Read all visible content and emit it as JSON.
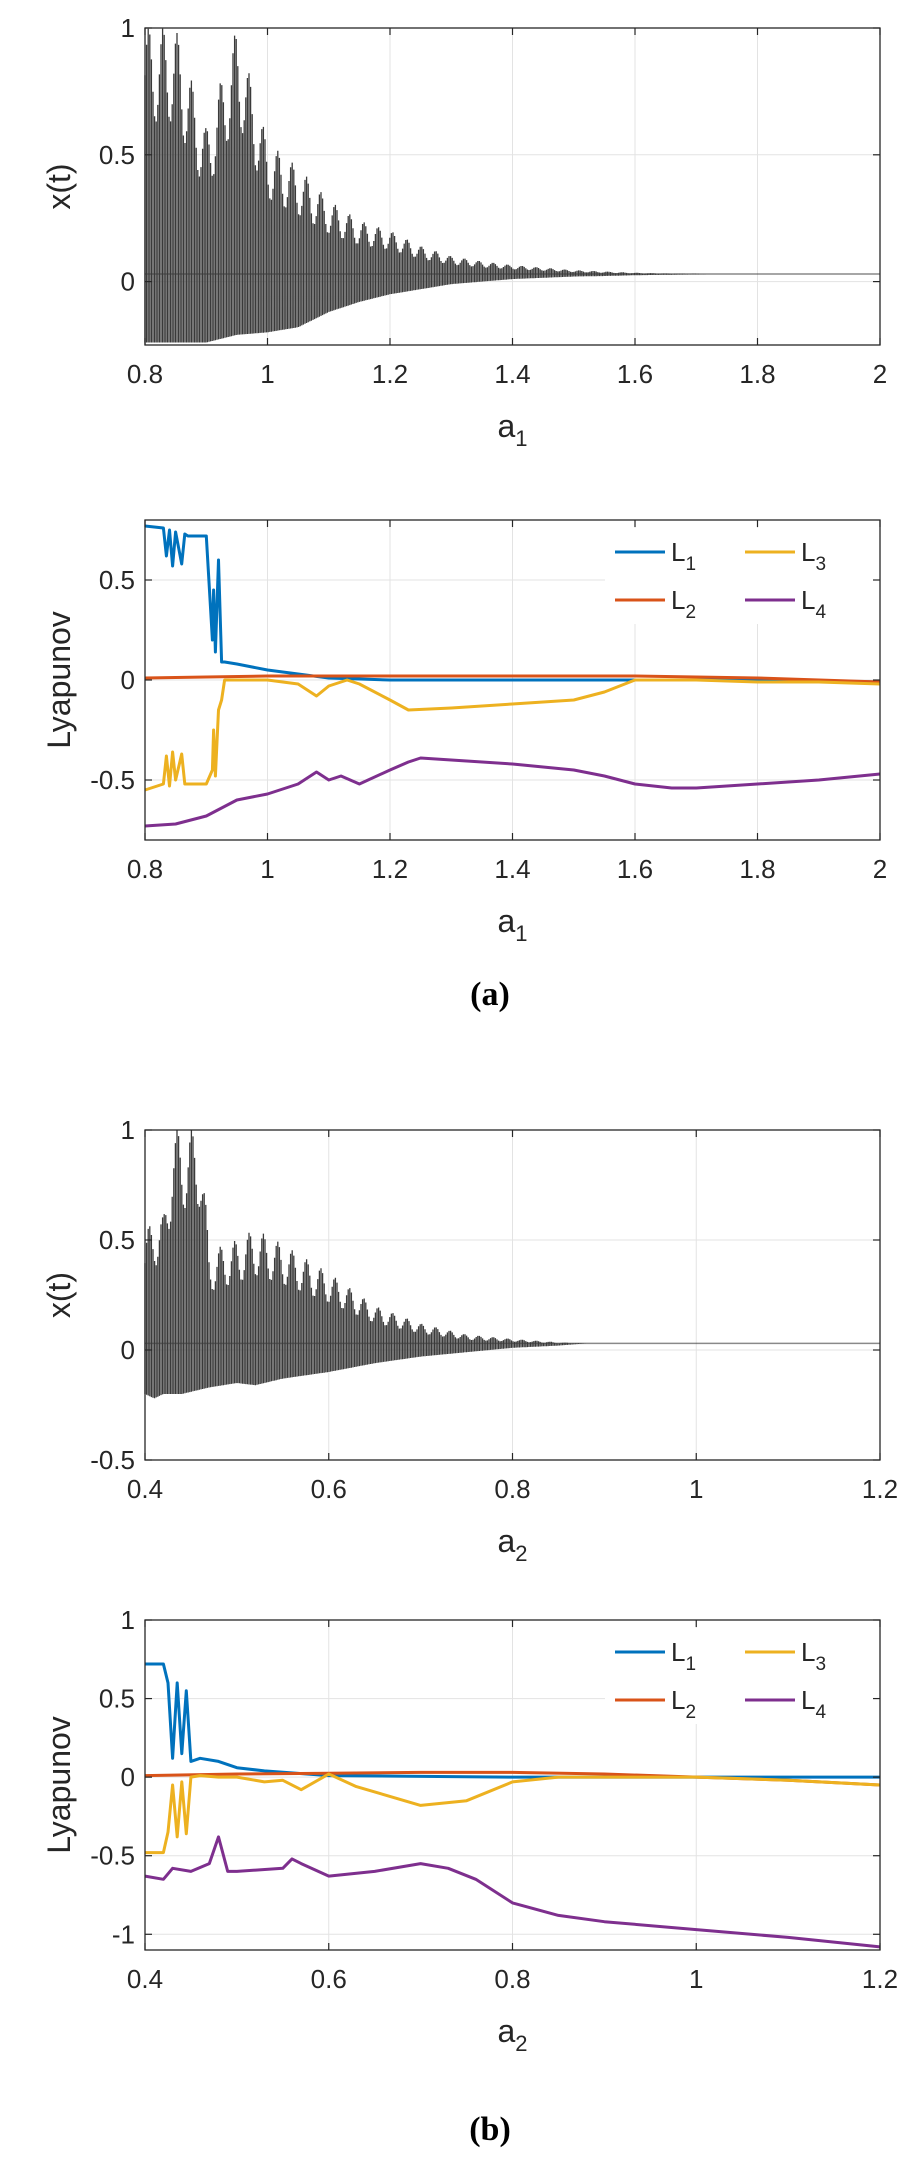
{
  "chart_data": [
    {
      "type": "line",
      "panel": "a",
      "xlabel": "a",
      "xlabel_sub": "1",
      "ylabel": "x(t)",
      "xlim": [
        0.8,
        2
      ],
      "ylim": [
        -0.25,
        1
      ],
      "xticks": [
        0.8,
        1,
        1.2,
        1.4,
        1.6,
        1.8,
        2
      ],
      "xtick_labels": [
        "0.8",
        "1",
        "1.2",
        "1.4",
        "1.6",
        "1.8",
        "2"
      ],
      "yticks": [
        0,
        0.5,
        1
      ],
      "ytick_labels": [
        "0",
        "0.5",
        "1"
      ],
      "grid": true,
      "series": [
        {
          "color": "#3a3a3a",
          "x": [
            0.8,
            0.85,
            0.9,
            0.95,
            1.0,
            1.05,
            1.1,
            1.15,
            1.2,
            1.25,
            1.3,
            1.35,
            1.4,
            1.45,
            1.5,
            1.55,
            1.6,
            1.65,
            1.72,
            1.8,
            1.9,
            2.0
          ],
          "upper": [
            1.0,
            1.0,
            0.6,
            1.0,
            0.55,
            0.45,
            0.32,
            0.24,
            0.2,
            0.14,
            0.1,
            0.08,
            0.065,
            0.055,
            0.045,
            0.04,
            0.035,
            0.032,
            0.03,
            0.03,
            0.03,
            0.03
          ],
          "lower": [
            -0.24,
            -0.24,
            -0.24,
            -0.21,
            -0.2,
            -0.18,
            -0.12,
            -0.08,
            -0.05,
            -0.03,
            -0.01,
            0.0,
            0.01,
            0.015,
            0.02,
            0.022,
            0.025,
            0.027,
            0.03,
            0.03,
            0.03,
            0.03
          ]
        }
      ]
    },
    {
      "type": "line",
      "panel": "a",
      "xlabel": "a",
      "xlabel_sub": "1",
      "ylabel": "Lyapunov",
      "xlim": [
        0.8,
        2
      ],
      "ylim": [
        -0.8,
        0.8
      ],
      "xticks": [
        0.8,
        1,
        1.2,
        1.4,
        1.6,
        1.8,
        2
      ],
      "xtick_labels": [
        "0.8",
        "1",
        "1.2",
        "1.4",
        "1.6",
        "1.8",
        "2"
      ],
      "yticks": [
        0.5,
        0,
        -0.5
      ],
      "ytick_labels": [
        "0.5",
        "0",
        "-0.5"
      ],
      "grid": true,
      "legend": "top-right",
      "series": [
        {
          "name": "L",
          "sub": "1",
          "color": "#0072BD",
          "x": [
            0.8,
            0.83,
            0.835,
            0.84,
            0.845,
            0.85,
            0.86,
            0.865,
            0.87,
            0.9,
            0.91,
            0.912,
            0.915,
            0.92,
            0.925,
            0.93,
            0.95,
            1.0,
            1.05,
            1.1,
            1.2,
            1.4,
            1.6,
            1.8,
            2.0
          ],
          "y": [
            0.77,
            0.76,
            0.62,
            0.75,
            0.57,
            0.74,
            0.58,
            0.73,
            0.72,
            0.72,
            0.2,
            0.45,
            0.14,
            0.6,
            0.09,
            0.09,
            0.08,
            0.05,
            0.03,
            0.01,
            0.0,
            0.0,
            0.0,
            0.0,
            -0.01
          ]
        },
        {
          "name": "L",
          "sub": "2",
          "color": "#D95319",
          "x": [
            0.8,
            0.9,
            1.0,
            1.1,
            1.2,
            1.4,
            1.6,
            1.8,
            2.0
          ],
          "y": [
            0.01,
            0.015,
            0.02,
            0.02,
            0.02,
            0.02,
            0.02,
            0.01,
            -0.01
          ]
        },
        {
          "name": "L",
          "sub": "3",
          "color": "#EDB120",
          "x": [
            0.8,
            0.83,
            0.835,
            0.84,
            0.845,
            0.85,
            0.86,
            0.865,
            0.87,
            0.9,
            0.91,
            0.912,
            0.915,
            0.92,
            0.925,
            0.93,
            0.95,
            1.0,
            1.05,
            1.08,
            1.1,
            1.13,
            1.15,
            1.2,
            1.23,
            1.3,
            1.4,
            1.5,
            1.55,
            1.6,
            1.65,
            1.7,
            1.8,
            1.9,
            2.0
          ],
          "y": [
            -0.55,
            -0.52,
            -0.38,
            -0.53,
            -0.36,
            -0.5,
            -0.37,
            -0.52,
            -0.52,
            -0.52,
            -0.45,
            -0.25,
            -0.48,
            -0.15,
            -0.1,
            0.0,
            0.0,
            0.0,
            -0.02,
            -0.08,
            -0.03,
            0.0,
            -0.02,
            -0.1,
            -0.15,
            -0.14,
            -0.12,
            -0.1,
            -0.06,
            0.0,
            0.0,
            0.0,
            -0.01,
            -0.01,
            -0.02
          ]
        },
        {
          "name": "L",
          "sub": "4",
          "color": "#7E2F8E",
          "x": [
            0.8,
            0.85,
            0.9,
            0.95,
            1.0,
            1.05,
            1.08,
            1.1,
            1.12,
            1.15,
            1.2,
            1.23,
            1.25,
            1.3,
            1.4,
            1.5,
            1.55,
            1.6,
            1.66,
            1.7,
            1.8,
            1.9,
            2.0
          ],
          "y": [
            -0.73,
            -0.72,
            -0.68,
            -0.6,
            -0.57,
            -0.52,
            -0.46,
            -0.5,
            -0.48,
            -0.52,
            -0.45,
            -0.41,
            -0.39,
            -0.4,
            -0.42,
            -0.45,
            -0.48,
            -0.52,
            -0.54,
            -0.54,
            -0.52,
            -0.5,
            -0.47
          ]
        }
      ]
    },
    {
      "type": "line",
      "panel": "b",
      "xlabel": "a",
      "xlabel_sub": "2",
      "ylabel": "x(t)",
      "xlim": [
        0.4,
        1.2
      ],
      "ylim": [
        -0.5,
        1
      ],
      "xticks": [
        0.4,
        0.6,
        0.8,
        1,
        1.2
      ],
      "xtick_labels": [
        "0.4",
        "0.6",
        "0.8",
        "1",
        "1.2"
      ],
      "yticks": [
        1,
        0.5,
        0,
        -0.5
      ],
      "ytick_labels": [
        "1",
        "0.5",
        "0",
        "-0.5"
      ],
      "grid": true,
      "series": [
        {
          "color": "#3a3a3a",
          "x": [
            0.4,
            0.41,
            0.42,
            0.43,
            0.44,
            0.46,
            0.47,
            0.5,
            0.52,
            0.55,
            0.6,
            0.65,
            0.7,
            0.75,
            0.8,
            0.85,
            0.88,
            0.95,
            1.1,
            1.2
          ],
          "upper": [
            0.5,
            0.65,
            0.6,
            1.0,
            1.0,
            1.0,
            0.45,
            0.5,
            0.55,
            0.48,
            0.35,
            0.2,
            0.12,
            0.07,
            0.05,
            0.035,
            0.03,
            0.03,
            0.03,
            0.03
          ],
          "lower": [
            -0.2,
            -0.22,
            -0.2,
            -0.2,
            -0.2,
            -0.18,
            -0.17,
            -0.15,
            -0.16,
            -0.13,
            -0.1,
            -0.06,
            -0.03,
            -0.01,
            0.01,
            0.02,
            0.03,
            0.03,
            0.03,
            0.03
          ]
        }
      ]
    },
    {
      "type": "line",
      "panel": "b",
      "xlabel": "a",
      "xlabel_sub": "2",
      "ylabel": "Lyapunov",
      "xlim": [
        0.4,
        1.2
      ],
      "ylim": [
        -1.1,
        1
      ],
      "xticks": [
        0.4,
        0.6,
        0.8,
        1,
        1.2
      ],
      "xtick_labels": [
        "0.4",
        "0.6",
        "0.8",
        "1",
        "1.2"
      ],
      "yticks": [
        1,
        0.5,
        0,
        -0.5,
        -1
      ],
      "ytick_labels": [
        "1",
        "0.5",
        "0",
        "-0.5",
        "-1"
      ],
      "grid": true,
      "legend": "top-right",
      "series": [
        {
          "name": "L",
          "sub": "1",
          "color": "#0072BD",
          "x": [
            0.4,
            0.42,
            0.425,
            0.43,
            0.435,
            0.44,
            0.445,
            0.45,
            0.46,
            0.48,
            0.5,
            0.53,
            0.6,
            0.8,
            1.0,
            1.2
          ],
          "y": [
            0.72,
            0.72,
            0.6,
            0.12,
            0.6,
            0.15,
            0.55,
            0.1,
            0.12,
            0.1,
            0.06,
            0.04,
            0.01,
            0.0,
            0.0,
            0.0
          ]
        },
        {
          "name": "L",
          "sub": "2",
          "color": "#D95319",
          "x": [
            0.4,
            0.5,
            0.6,
            0.7,
            0.8,
            0.9,
            1.0,
            1.1,
            1.2
          ],
          "y": [
            0.01,
            0.02,
            0.025,
            0.03,
            0.03,
            0.02,
            0.0,
            -0.02,
            -0.05
          ]
        },
        {
          "name": "L",
          "sub": "3",
          "color": "#EDB120",
          "x": [
            0.4,
            0.42,
            0.425,
            0.43,
            0.435,
            0.44,
            0.445,
            0.45,
            0.46,
            0.48,
            0.5,
            0.53,
            0.55,
            0.57,
            0.6,
            0.63,
            0.7,
            0.75,
            0.8,
            0.85,
            0.9,
            1.0,
            1.1,
            1.2
          ],
          "y": [
            -0.48,
            -0.48,
            -0.35,
            -0.05,
            -0.38,
            -0.03,
            -0.36,
            0.0,
            0.01,
            0.0,
            0.0,
            -0.03,
            -0.02,
            -0.08,
            0.02,
            -0.06,
            -0.18,
            -0.15,
            -0.03,
            0.0,
            0.0,
            0.0,
            -0.02,
            -0.05
          ]
        },
        {
          "name": "L",
          "sub": "4",
          "color": "#7E2F8E",
          "x": [
            0.4,
            0.42,
            0.43,
            0.45,
            0.47,
            0.48,
            0.49,
            0.5,
            0.55,
            0.56,
            0.57,
            0.6,
            0.65,
            0.7,
            0.73,
            0.76,
            0.8,
            0.85,
            0.9,
            1.0,
            1.1,
            1.2
          ],
          "y": [
            -0.63,
            -0.65,
            -0.58,
            -0.6,
            -0.55,
            -0.38,
            -0.6,
            -0.6,
            -0.58,
            -0.52,
            -0.55,
            -0.63,
            -0.6,
            -0.55,
            -0.58,
            -0.65,
            -0.8,
            -0.88,
            -0.92,
            -0.97,
            -1.02,
            -1.08
          ]
        }
      ]
    }
  ],
  "captions": [
    "(a)",
    "(b)"
  ]
}
